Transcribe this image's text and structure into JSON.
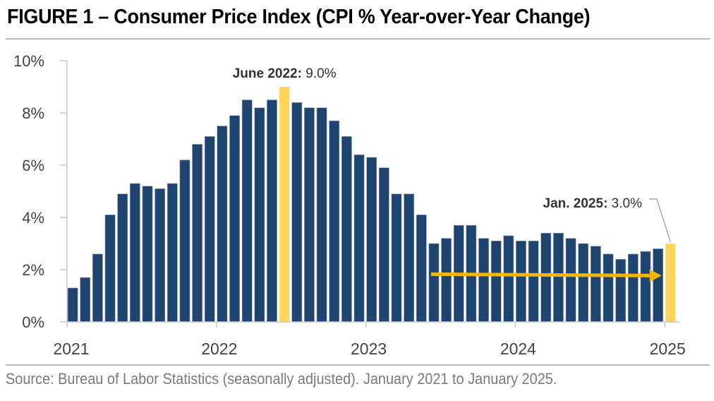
{
  "header": {
    "title": "FIGURE 1 – Consumer Price Index (CPI % Year-over-Year Change)"
  },
  "footer": {
    "source": "Source: Bureau of Labor Statistics (seasonally adjusted). January 2021 to January 2025."
  },
  "colors": {
    "bar": "#1f4470",
    "highlight": "#ffd45a",
    "arrow": "#f5b400",
    "axis": "#c8c8c8",
    "leader": "#999999"
  },
  "chart_data": {
    "type": "bar",
    "title": "FIGURE 1 – Consumer Price Index (CPI % Year-over-Year Change)",
    "xlabel": "",
    "ylabel": "",
    "ylim": [
      0,
      10
    ],
    "yticks": [
      0,
      2,
      4,
      6,
      8,
      10
    ],
    "ytick_labels": [
      "0%",
      "2%",
      "4%",
      "6%",
      "8%",
      "10%"
    ],
    "xtick_labels": [
      "2021",
      "2022",
      "2023",
      "2024",
      "2025"
    ],
    "xtick_month_index": [
      0,
      12,
      24,
      36,
      48
    ],
    "grid": false,
    "categories": [
      "Jan 2021",
      "Feb 2021",
      "Mar 2021",
      "Apr 2021",
      "May 2021",
      "Jun 2021",
      "Jul 2021",
      "Aug 2021",
      "Sep 2021",
      "Oct 2021",
      "Nov 2021",
      "Dec 2021",
      "Jan 2022",
      "Feb 2022",
      "Mar 2022",
      "Apr 2022",
      "May 2022",
      "Jun 2022",
      "Jul 2022",
      "Aug 2022",
      "Sep 2022",
      "Oct 2022",
      "Nov 2022",
      "Dec 2022",
      "Jan 2023",
      "Feb 2023",
      "Mar 2023",
      "Apr 2023",
      "May 2023",
      "Jun 2023",
      "Jul 2023",
      "Aug 2023",
      "Sep 2023",
      "Oct 2023",
      "Nov 2023",
      "Dec 2023",
      "Jan 2024",
      "Feb 2024",
      "Mar 2024",
      "Apr 2024",
      "May 2024",
      "Jun 2024",
      "Jul 2024",
      "Aug 2024",
      "Sep 2024",
      "Oct 2024",
      "Nov 2024",
      "Dec 2024",
      "Jan 2025"
    ],
    "values": [
      1.3,
      1.7,
      2.6,
      4.1,
      4.9,
      5.3,
      5.2,
      5.1,
      5.3,
      6.2,
      6.8,
      7.1,
      7.5,
      7.9,
      8.5,
      8.2,
      8.5,
      9.0,
      8.4,
      8.2,
      8.2,
      7.7,
      7.1,
      6.4,
      6.3,
      5.9,
      4.9,
      4.9,
      4.1,
      3.0,
      3.2,
      3.7,
      3.7,
      3.2,
      3.1,
      3.3,
      3.1,
      3.1,
      3.4,
      3.4,
      3.2,
      3.0,
      2.9,
      2.6,
      2.4,
      2.6,
      2.7,
      2.8,
      3.0
    ],
    "highlighted_indices": [
      17,
      48
    ],
    "annotations": [
      {
        "bold": "June 2022:",
        "text": " 9.0%",
        "index": 17
      },
      {
        "bold": "Jan. 2025:",
        "text": " 3.0%",
        "index": 48
      }
    ],
    "trend_arrow": {
      "from_index": 29,
      "to_index": 47,
      "value": 1.8,
      "description": "flat trend arrow"
    }
  }
}
